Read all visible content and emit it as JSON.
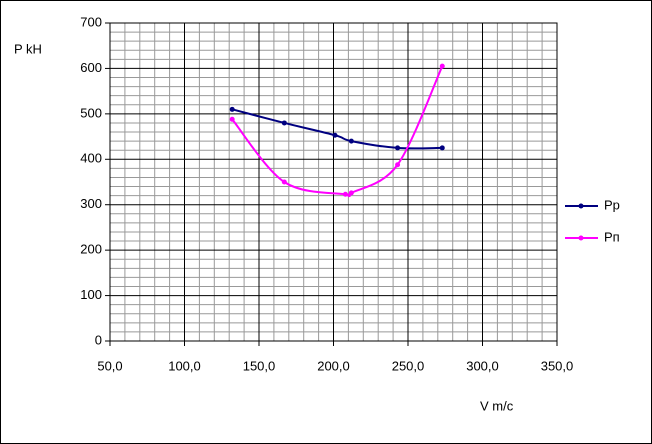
{
  "chart_data": {
    "type": "line",
    "y_label": "P kH",
    "x_label": "V m/c",
    "series": [
      {
        "name": "Pp",
        "color": "#000080",
        "x": [
          132,
          167,
          201,
          212,
          243,
          273
        ],
        "values": [
          510,
          480,
          453,
          440,
          425,
          425
        ]
      },
      {
        "name": "Pп",
        "color": "#ff00ff",
        "x": [
          132,
          167,
          208,
          212,
          243,
          273
        ],
        "values": [
          488,
          350,
          323,
          326,
          388,
          605
        ]
      }
    ],
    "xlim": [
      50,
      350
    ],
    "xticks": [
      {
        "value": 50,
        "label": "50,0"
      },
      {
        "value": 100,
        "label": "100,0"
      },
      {
        "value": 150,
        "label": "150,0"
      },
      {
        "value": 200,
        "label": "200,0"
      },
      {
        "value": 250,
        "label": "250,0"
      },
      {
        "value": 300,
        "label": "300,0"
      },
      {
        "value": 350,
        "label": "350,0"
      }
    ],
    "ylim": [
      0,
      700
    ],
    "yticks": [
      0,
      100,
      200,
      300,
      400,
      500,
      600,
      700
    ],
    "grid": true,
    "minor_grid": true,
    "smooth": true,
    "legend": "right"
  }
}
